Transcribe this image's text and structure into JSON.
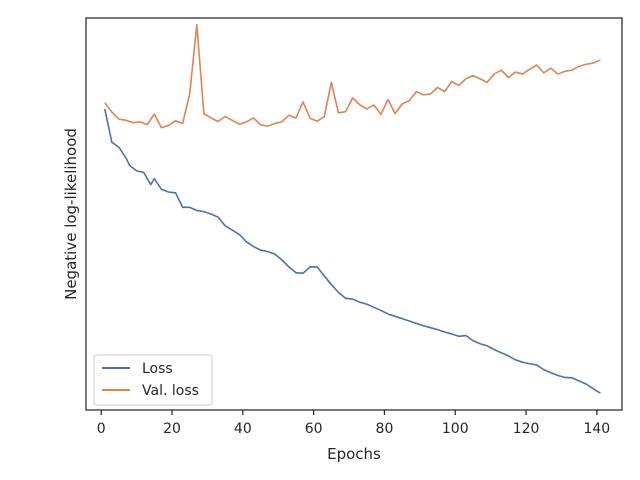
{
  "chart_data": {
    "type": "line",
    "title": "",
    "xlabel": "Epochs",
    "ylabel": "Negative log-likelihood",
    "xlim": [
      -4.3,
      147.1
    ],
    "ylim": [
      0,
      1
    ],
    "xticks": [
      0,
      20,
      40,
      60,
      80,
      100,
      120,
      140
    ],
    "yticks_visible": false,
    "grid": false,
    "legend_position": "lower-left",
    "series": [
      {
        "name": "Loss",
        "color": "#4c72b0",
        "x": [
          1,
          3,
          5,
          7,
          8,
          10,
          12,
          14,
          15,
          17,
          19,
          21,
          23,
          25,
          27,
          29,
          31,
          33,
          35,
          37,
          39,
          41,
          43,
          45,
          47,
          49,
          51,
          53,
          55,
          57,
          59,
          61,
          63,
          65,
          67,
          69,
          71,
          73,
          75,
          77,
          79,
          81,
          83,
          85,
          87,
          89,
          91,
          93,
          95,
          97,
          99,
          101,
          103,
          105,
          107,
          109,
          111,
          113,
          115,
          117,
          119,
          121,
          123,
          125,
          127,
          129,
          131,
          133,
          135,
          137,
          139,
          141
        ],
        "values": [
          0.768,
          0.683,
          0.67,
          0.643,
          0.624,
          0.61,
          0.606,
          0.575,
          0.59,
          0.563,
          0.556,
          0.554,
          0.517,
          0.517,
          0.509,
          0.506,
          0.5,
          0.492,
          0.47,
          0.459,
          0.448,
          0.429,
          0.417,
          0.408,
          0.404,
          0.398,
          0.383,
          0.365,
          0.35,
          0.349,
          0.365,
          0.365,
          0.342,
          0.32,
          0.3,
          0.285,
          0.283,
          0.275,
          0.27,
          0.262,
          0.254,
          0.245,
          0.239,
          0.233,
          0.227,
          0.221,
          0.215,
          0.21,
          0.205,
          0.199,
          0.194,
          0.188,
          0.19,
          0.177,
          0.169,
          0.164,
          0.154,
          0.146,
          0.138,
          0.128,
          0.122,
          0.118,
          0.115,
          0.103,
          0.095,
          0.088,
          0.083,
          0.082,
          0.074,
          0.066,
          0.054,
          0.043
        ]
      },
      {
        "name": "Val. loss",
        "color": "#dd8452",
        "x": [
          1,
          3,
          5,
          7,
          9,
          11,
          13,
          15,
          17,
          19,
          21,
          23,
          25,
          27,
          29,
          31,
          33,
          35,
          37,
          39,
          41,
          43,
          45,
          47,
          49,
          51,
          53,
          55,
          57,
          59,
          61,
          63,
          65,
          67,
          69,
          71,
          73,
          75,
          77,
          79,
          81,
          83,
          85,
          87,
          89,
          91,
          93,
          95,
          97,
          99,
          101,
          103,
          105,
          107,
          109,
          111,
          113,
          115,
          117,
          119,
          121,
          123,
          125,
          127,
          129,
          131,
          133,
          135,
          137,
          139,
          141
        ],
        "values": [
          0.784,
          0.76,
          0.742,
          0.739,
          0.733,
          0.735,
          0.728,
          0.755,
          0.72,
          0.726,
          0.738,
          0.731,
          0.807,
          0.983,
          0.756,
          0.745,
          0.736,
          0.749,
          0.739,
          0.729,
          0.735,
          0.745,
          0.728,
          0.724,
          0.731,
          0.735,
          0.752,
          0.745,
          0.786,
          0.744,
          0.737,
          0.748,
          0.836,
          0.758,
          0.761,
          0.796,
          0.779,
          0.768,
          0.778,
          0.754,
          0.792,
          0.756,
          0.781,
          0.789,
          0.812,
          0.804,
          0.806,
          0.823,
          0.812,
          0.838,
          0.828,
          0.845,
          0.853,
          0.845,
          0.836,
          0.857,
          0.867,
          0.848,
          0.862,
          0.857,
          0.869,
          0.88,
          0.86,
          0.872,
          0.857,
          0.864,
          0.867,
          0.877,
          0.882,
          0.885,
          0.893
        ]
      }
    ]
  }
}
